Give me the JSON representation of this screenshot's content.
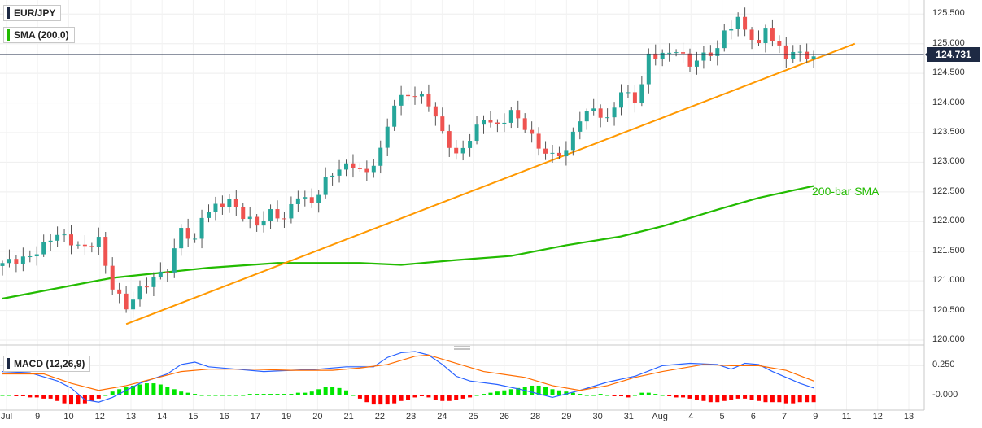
{
  "legend": {
    "symbol": "EUR/JPY",
    "sma": "SMA (200,0)",
    "macd": "MACD (12,26,9)"
  },
  "price_badge": "124.731",
  "sma_annotation": "200-bar SMA",
  "colors": {
    "up": "#26a69a",
    "down": "#ef5350",
    "sma": "#22bb00",
    "trendline": "#ff9800",
    "macd_line": "#2962ff",
    "signal_line": "#ff6d00",
    "hist_pos": "#00e600",
    "hist_neg": "#ff0000",
    "badge": "#1e2a44"
  },
  "chart_data": [
    {
      "type": "candlestick",
      "title": "EUR/JPY",
      "ylim": [
        120.0,
        125.6
      ],
      "y_ticks": [
        "125.500",
        "125.000",
        "124.500",
        "124.000",
        "123.500",
        "123.000",
        "122.500",
        "122.000",
        "121.500",
        "121.000",
        "120.500",
        "120.000"
      ],
      "x_ticks": [
        "Jul",
        "9",
        "10",
        "12",
        "13",
        "14",
        "15",
        "16",
        "17",
        "19",
        "20",
        "21",
        "22",
        "23",
        "24",
        "25",
        "26",
        "28",
        "29",
        "30",
        "31",
        "Aug",
        "4",
        "5",
        "6",
        "7",
        "9",
        "11",
        "12",
        "13"
      ],
      "last_price": 124.731,
      "close_path": [
        [
          0,
          121.3
        ],
        [
          4,
          121.4
        ],
        [
          8,
          121.8
        ],
        [
          10,
          121.65
        ],
        [
          12,
          121.55
        ],
        [
          14,
          121.7
        ],
        [
          15,
          121.25
        ],
        [
          16,
          120.9
        ],
        [
          18,
          120.55
        ],
        [
          20,
          120.85
        ],
        [
          22,
          121.05
        ],
        [
          24,
          121.2
        ],
        [
          25,
          121.5
        ],
        [
          26,
          121.9
        ],
        [
          27,
          121.75
        ],
        [
          28,
          121.65
        ],
        [
          29,
          122.1
        ],
        [
          31,
          122.25
        ],
        [
          33,
          122.35
        ],
        [
          35,
          122.1
        ],
        [
          37,
          121.95
        ],
        [
          39,
          122.15
        ],
        [
          41,
          122.05
        ],
        [
          43,
          122.45
        ],
        [
          45,
          122.3
        ],
        [
          47,
          122.7
        ],
        [
          49,
          122.9
        ],
        [
          51,
          122.95
        ],
        [
          53,
          122.8
        ],
        [
          55,
          123.2
        ],
        [
          57,
          124.0
        ],
        [
          59,
          124.15
        ],
        [
          61,
          124.1
        ],
        [
          62,
          124.0
        ],
        [
          64,
          123.5
        ],
        [
          66,
          123.1
        ],
        [
          68,
          123.4
        ],
        [
          70,
          123.75
        ],
        [
          72,
          123.6
        ],
        [
          74,
          123.85
        ],
        [
          76,
          123.6
        ],
        [
          78,
          123.25
        ],
        [
          80,
          123.1
        ],
        [
          82,
          123.2
        ],
        [
          84,
          123.75
        ],
        [
          86,
          123.9
        ],
        [
          88,
          123.7
        ],
        [
          90,
          124.2
        ],
        [
          92,
          124.05
        ],
        [
          93,
          124.3
        ],
        [
          94,
          124.8
        ],
        [
          96,
          124.8
        ],
        [
          98,
          124.9
        ],
        [
          100,
          124.65
        ],
        [
          102,
          124.8
        ],
        [
          104,
          124.9
        ],
        [
          105,
          125.2
        ],
        [
          107,
          125.4
        ],
        [
          108,
          125.25
        ],
        [
          110,
          124.95
        ],
        [
          111,
          125.3
        ],
        [
          112,
          125.05
        ],
        [
          114,
          124.8
        ],
        [
          116,
          124.85
        ],
        [
          118,
          124.73
        ]
      ],
      "candle_count": 119
    },
    {
      "type": "line",
      "series": [
        {
          "name": "200-bar SMA",
          "points": [
            [
              0,
              120.7
            ],
            [
              16,
              121.05
            ],
            [
              30,
              121.22
            ],
            [
              40,
              121.3
            ],
            [
              52,
              121.3
            ],
            [
              58,
              121.27
            ],
            [
              66,
              121.35
            ],
            [
              74,
              121.42
            ],
            [
              82,
              121.6
            ],
            [
              90,
              121.75
            ],
            [
              96,
              121.92
            ],
            [
              104,
              122.2
            ],
            [
              110,
              122.4
            ],
            [
              118,
              122.6
            ]
          ]
        }
      ]
    },
    {
      "type": "line",
      "series": [
        {
          "name": "trendline",
          "points": [
            [
              18,
              120.27
            ],
            [
              124,
              125.0
            ]
          ]
        }
      ]
    },
    {
      "type": "bar",
      "title": "MACD (12,26,9)",
      "ylim": [
        -0.1,
        0.37
      ],
      "y_ticks": [
        "0.250",
        "-0.000"
      ],
      "macd_line": [
        [
          0,
          0.2
        ],
        [
          4,
          0.19
        ],
        [
          8,
          0.12
        ],
        [
          10,
          0.06
        ],
        [
          12,
          -0.04
        ],
        [
          14,
          -0.06
        ],
        [
          16,
          -0.02
        ],
        [
          20,
          0.1
        ],
        [
          24,
          0.18
        ],
        [
          26,
          0.26
        ],
        [
          28,
          0.28
        ],
        [
          30,
          0.24
        ],
        [
          34,
          0.22
        ],
        [
          38,
          0.2
        ],
        [
          42,
          0.21
        ],
        [
          46,
          0.22
        ],
        [
          50,
          0.24
        ],
        [
          54,
          0.24
        ],
        [
          56,
          0.32
        ],
        [
          58,
          0.36
        ],
        [
          60,
          0.37
        ],
        [
          62,
          0.34
        ],
        [
          64,
          0.26
        ],
        [
          66,
          0.16
        ],
        [
          68,
          0.12
        ],
        [
          72,
          0.09
        ],
        [
          76,
          0.04
        ],
        [
          80,
          -0.02
        ],
        [
          84,
          0.04
        ],
        [
          88,
          0.11
        ],
        [
          92,
          0.16
        ],
        [
          96,
          0.25
        ],
        [
          100,
          0.27
        ],
        [
          104,
          0.26
        ],
        [
          106,
          0.22
        ],
        [
          108,
          0.27
        ],
        [
          110,
          0.26
        ],
        [
          112,
          0.2
        ],
        [
          114,
          0.15
        ],
        [
          116,
          0.1
        ],
        [
          118,
          0.06
        ]
      ],
      "signal_line": [
        [
          0,
          0.18
        ],
        [
          6,
          0.18
        ],
        [
          10,
          0.1
        ],
        [
          14,
          0.04
        ],
        [
          18,
          0.08
        ],
        [
          22,
          0.14
        ],
        [
          26,
          0.2
        ],
        [
          30,
          0.22
        ],
        [
          36,
          0.22
        ],
        [
          42,
          0.21
        ],
        [
          48,
          0.21
        ],
        [
          52,
          0.23
        ],
        [
          56,
          0.26
        ],
        [
          60,
          0.33
        ],
        [
          62,
          0.34
        ],
        [
          66,
          0.27
        ],
        [
          70,
          0.2
        ],
        [
          76,
          0.15
        ],
        [
          80,
          0.08
        ],
        [
          84,
          0.04
        ],
        [
          88,
          0.08
        ],
        [
          92,
          0.15
        ],
        [
          96,
          0.2
        ],
        [
          102,
          0.26
        ],
        [
          106,
          0.25
        ],
        [
          110,
          0.25
        ],
        [
          114,
          0.21
        ],
        [
          118,
          0.12
        ]
      ],
      "histogram": [
        0.0,
        0.0,
        -0.01,
        -0.01,
        -0.02,
        -0.02,
        -0.03,
        -0.03,
        -0.05,
        -0.07,
        -0.08,
        -0.08,
        -0.07,
        -0.05,
        -0.03,
        0.0,
        0.03,
        0.05,
        0.07,
        0.08,
        0.09,
        0.1,
        0.1,
        0.09,
        0.07,
        0.05,
        0.03,
        0.02,
        0.01,
        0.0,
        0.0,
        0.0,
        0.0,
        0.0,
        0.0,
        0.0,
        0.01,
        0.01,
        0.01,
        0.01,
        0.01,
        0.01,
        0.01,
        0.02,
        0.02,
        0.03,
        0.05,
        0.07,
        0.07,
        0.06,
        0.04,
        0.0,
        -0.03,
        -0.06,
        -0.08,
        -0.08,
        -0.08,
        -0.07,
        -0.05,
        -0.04,
        -0.02,
        -0.01,
        -0.02,
        -0.04,
        -0.05,
        -0.05,
        -0.04,
        -0.03,
        -0.02,
        0.0,
        0.01,
        0.02,
        0.03,
        0.04,
        0.05,
        0.06,
        0.07,
        0.08,
        0.08,
        0.07,
        0.05,
        0.04,
        0.03,
        0.02,
        0.01,
        0.0,
        0.0,
        0.01,
        0.0,
        -0.01,
        -0.01,
        -0.02,
        0.0,
        0.02,
        0.02,
        0.01,
        0.0,
        -0.01,
        -0.02,
        -0.02,
        -0.03,
        -0.04,
        -0.05,
        -0.06,
        -0.06,
        -0.05,
        -0.04,
        -0.03,
        -0.03,
        -0.04,
        -0.05,
        -0.06,
        -0.06,
        -0.06,
        -0.07,
        -0.07,
        -0.06,
        -0.06,
        -0.06
      ]
    }
  ]
}
